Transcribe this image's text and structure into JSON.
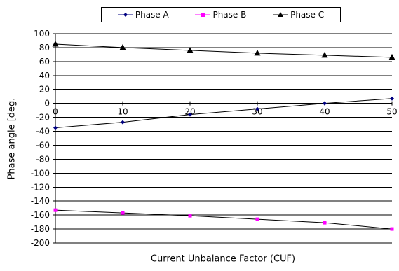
{
  "chart_data": {
    "type": "line",
    "xlabel": "Current Unbalance Factor (CUF)",
    "ylabel": "Phase angle [deg.",
    "xlim": [
      0,
      50
    ],
    "ylim": [
      -200,
      100
    ],
    "x_ticks": [
      "0",
      "10",
      "20",
      "30",
      "40",
      "50"
    ],
    "y_ticks": [
      "100",
      "80",
      "60",
      "40",
      "20",
      "0",
      "-20",
      "-40",
      "-60",
      "-80",
      "-100",
      "-120",
      "-140",
      "-160",
      "-180",
      "-200"
    ],
    "grid": "horizontal",
    "legend_position": "top",
    "series": [
      {
        "name": "Phase A",
        "color": "#000080",
        "marker": "diamond",
        "x": [
          0,
          10,
          20,
          30,
          40,
          50
        ],
        "y": [
          -35,
          -27,
          -16,
          -8,
          0,
          7
        ]
      },
      {
        "name": "Phase B",
        "color": "#ff00ff",
        "marker": "square",
        "x": [
          0,
          10,
          20,
          30,
          40,
          50
        ],
        "y": [
          -153,
          -157,
          -161,
          -166,
          -171,
          -180
        ]
      },
      {
        "name": "Phase C",
        "color": "#000000",
        "marker": "triangle",
        "x": [
          0,
          10,
          20,
          30,
          40,
          50
        ],
        "y": [
          85,
          80,
          76,
          72,
          69,
          66
        ]
      }
    ]
  }
}
